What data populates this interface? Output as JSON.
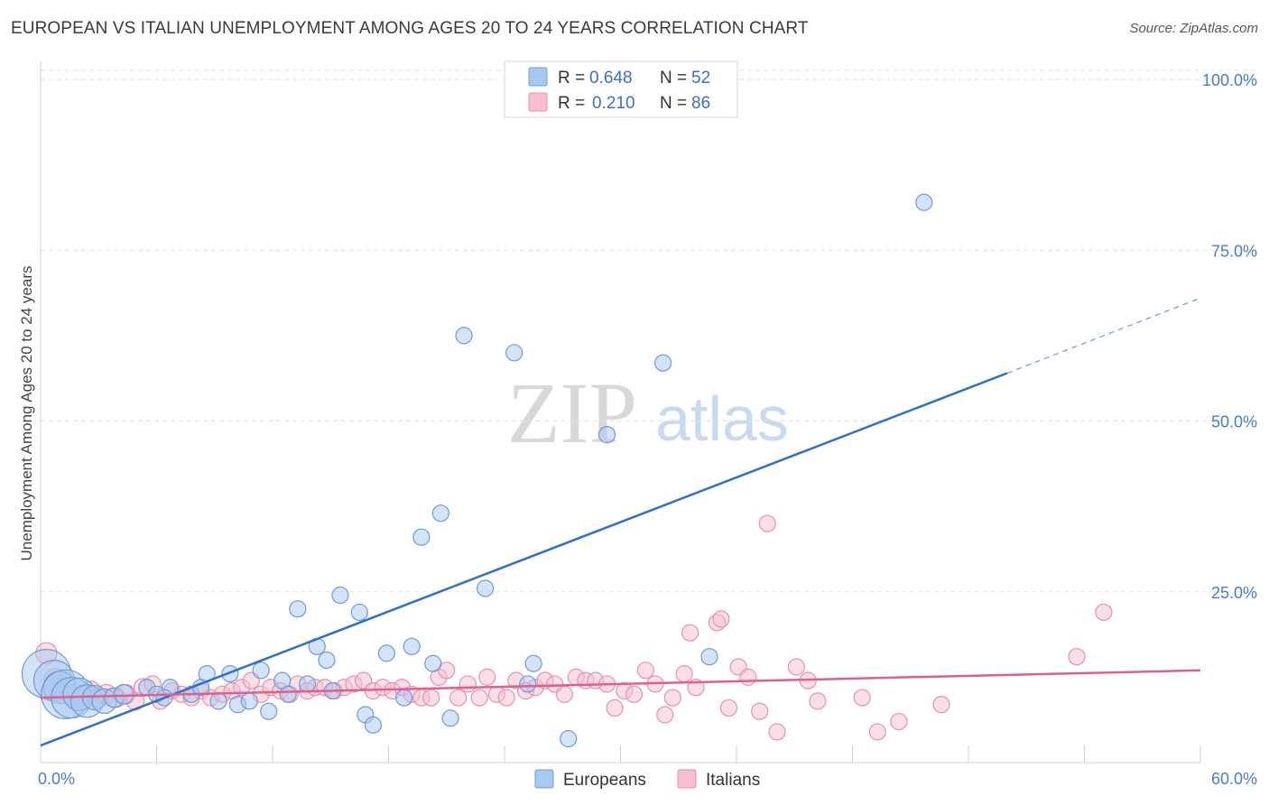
{
  "header": {
    "title": "EUROPEAN VS ITALIAN UNEMPLOYMENT AMONG AGES 20 TO 24 YEARS CORRELATION CHART",
    "source": "Source: ZipAtlas.com"
  },
  "watermark": {
    "zip": "ZIP",
    "atlas": "atlas"
  },
  "legend": {
    "r_label": "R =",
    "n_label": "N =",
    "europeans": {
      "r": "0.648",
      "n": "52"
    },
    "italians": {
      "r": "0.210",
      "n": "86"
    }
  },
  "chart_data": {
    "type": "scatter",
    "title": "EUROPEAN VS ITALIAN UNEMPLOYMENT AMONG AGES 20 TO 24 YEARS CORRELATION CHART",
    "xlabel": "",
    "ylabel": "Unemployment Among Ages 20 to 24 years",
    "xlim": [
      0,
      60
    ],
    "ylim": [
      0,
      100
    ],
    "x_tick_labels": {
      "min": "0.0%",
      "max": "60.0%"
    },
    "y_ticks": [
      {
        "value": 100,
        "label": "100.0%"
      },
      {
        "value": 75,
        "label": "75.0%"
      },
      {
        "value": 50,
        "label": "50.0%"
      },
      {
        "value": 25,
        "label": "25.0%"
      }
    ],
    "colors": {
      "europeans_fill": "#a9c8f0",
      "europeans_stroke": "#6e9bd8",
      "europeans_line": "#2e6fcc",
      "italians_fill": "#f6bfd0",
      "italians_stroke": "#e98fae",
      "italians_line": "#e0608a"
    },
    "series": [
      {
        "name": "Europeans",
        "r": 0.648,
        "n": 52,
        "trend": {
          "x0": 0,
          "y0": 2.5,
          "x1": 50,
          "y1": 57,
          "dash_to_x": 60,
          "dash_to_y": 68
        },
        "points": [
          [
            0.3,
            13,
            3
          ],
          [
            0.7,
            12,
            2.5
          ],
          [
            1.0,
            11,
            2
          ],
          [
            1.3,
            10,
            3
          ],
          [
            1.6,
            9.5,
            2.5
          ],
          [
            2.0,
            10,
            2
          ],
          [
            2.4,
            9,
            2
          ],
          [
            2.8,
            9.5,
            1.5
          ],
          [
            3.3,
            9,
            1.5
          ],
          [
            3.8,
            9.5,
            1.2
          ],
          [
            4.3,
            10,
            1.2
          ],
          [
            5.5,
            11,
            1
          ],
          [
            6.0,
            10,
            1
          ],
          [
            6.7,
            11,
            1
          ],
          [
            7.8,
            10,
            1
          ],
          [
            8.3,
            11,
            1
          ],
          [
            8.6,
            13,
            1
          ],
          [
            9.2,
            9,
            1
          ],
          [
            9.8,
            13,
            1
          ],
          [
            10.2,
            8.5,
            1
          ],
          [
            10.8,
            9,
            1
          ],
          [
            11.4,
            13.5,
            1
          ],
          [
            11.8,
            7.5,
            1
          ],
          [
            12.5,
            12,
            1
          ],
          [
            12.8,
            10,
            1
          ],
          [
            13.3,
            22.5,
            1
          ],
          [
            13.8,
            11.5,
            1
          ],
          [
            14.3,
            17,
            1
          ],
          [
            14.8,
            15,
            1
          ],
          [
            15.1,
            10.5,
            1
          ],
          [
            15.5,
            24.5,
            1
          ],
          [
            16.5,
            22,
            1
          ],
          [
            16.8,
            7,
            1
          ],
          [
            17.2,
            5.5,
            1
          ],
          [
            17.9,
            16,
            1
          ],
          [
            18.8,
            9.5,
            1
          ],
          [
            19.2,
            17,
            1
          ],
          [
            19.7,
            33,
            1
          ],
          [
            20.3,
            14.5,
            1
          ],
          [
            20.7,
            36.5,
            1
          ],
          [
            21.2,
            6.5,
            1
          ],
          [
            21.9,
            62.5,
            1
          ],
          [
            23.0,
            25.5,
            1
          ],
          [
            24.5,
            60,
            1
          ],
          [
            25.2,
            11.5,
            1
          ],
          [
            25.5,
            14.5,
            1
          ],
          [
            27.3,
            3.5,
            1
          ],
          [
            29.3,
            48,
            1
          ],
          [
            32.2,
            58.5,
            1
          ],
          [
            34.6,
            15.5,
            1
          ],
          [
            45.7,
            82,
            1
          ],
          [
            6.4,
            9.5,
            1
          ]
        ]
      },
      {
        "name": "Italians",
        "r": 0.21,
        "n": 86,
        "trend": {
          "x0": 0,
          "y0": 9.5,
          "x1": 60,
          "y1": 13.5
        },
        "points": [
          [
            0.3,
            16,
            1.3
          ],
          [
            0.8,
            12,
            1.5
          ],
          [
            1.2,
            10.5,
            1.5
          ],
          [
            1.7,
            10,
            1.3
          ],
          [
            2.2,
            9.5,
            1.3
          ],
          [
            2.6,
            10.5,
            1.2
          ],
          [
            3.0,
            9.5,
            1.2
          ],
          [
            3.4,
            10,
            1.2
          ],
          [
            3.9,
            9.5,
            1.2
          ],
          [
            4.4,
            10,
            1.2
          ],
          [
            4.9,
            9,
            1.1
          ],
          [
            5.3,
            11,
            1.1
          ],
          [
            5.8,
            11.5,
            1
          ],
          [
            6.2,
            9,
            1
          ],
          [
            6.8,
            10.5,
            1
          ],
          [
            7.3,
            10,
            1
          ],
          [
            7.8,
            9.5,
            1
          ],
          [
            8.3,
            10.5,
            1
          ],
          [
            8.8,
            9.5,
            1
          ],
          [
            9.4,
            10,
            1
          ],
          [
            9.9,
            10.5,
            1
          ],
          [
            10.4,
            11,
            1
          ],
          [
            10.9,
            12,
            1
          ],
          [
            11.4,
            10,
            1
          ],
          [
            11.9,
            11,
            1
          ],
          [
            12.4,
            10.5,
            1
          ],
          [
            12.9,
            10,
            1
          ],
          [
            13.3,
            11.5,
            1
          ],
          [
            13.8,
            10.5,
            1
          ],
          [
            14.2,
            11,
            1
          ],
          [
            14.7,
            11,
            1
          ],
          [
            15.2,
            10.5,
            1
          ],
          [
            15.7,
            11,
            1
          ],
          [
            16.2,
            11.5,
            1
          ],
          [
            16.7,
            12,
            1
          ],
          [
            17.2,
            10.5,
            1
          ],
          [
            17.7,
            11,
            1
          ],
          [
            18.2,
            10.5,
            1
          ],
          [
            18.7,
            11,
            1
          ],
          [
            19.2,
            10,
            1
          ],
          [
            19.7,
            9.5,
            1
          ],
          [
            20.2,
            9.5,
            1
          ],
          [
            20.6,
            12.5,
            1
          ],
          [
            21.0,
            13.5,
            1
          ],
          [
            21.6,
            9.5,
            1
          ],
          [
            22.1,
            11.5,
            1
          ],
          [
            22.7,
            9.5,
            1
          ],
          [
            23.1,
            12.5,
            1
          ],
          [
            23.6,
            10,
            1
          ],
          [
            24.1,
            9.5,
            1
          ],
          [
            24.6,
            12,
            1
          ],
          [
            25.1,
            10.5,
            1
          ],
          [
            25.6,
            11,
            1
          ],
          [
            26.1,
            12,
            1
          ],
          [
            26.6,
            11.5,
            1
          ],
          [
            27.1,
            10,
            1
          ],
          [
            27.7,
            12.5,
            1
          ],
          [
            28.2,
            12,
            1
          ],
          [
            28.7,
            12,
            1
          ],
          [
            29.3,
            11.5,
            1
          ],
          [
            29.7,
            8,
            1
          ],
          [
            30.2,
            10.5,
            1
          ],
          [
            30.7,
            10,
            1
          ],
          [
            31.3,
            13.5,
            1
          ],
          [
            31.8,
            11.5,
            1
          ],
          [
            32.3,
            7,
            1
          ],
          [
            32.7,
            9.5,
            1
          ],
          [
            33.3,
            13,
            1
          ],
          [
            33.6,
            19,
            1
          ],
          [
            33.9,
            11,
            1
          ],
          [
            35.0,
            20.5,
            1
          ],
          [
            35.2,
            21,
            1
          ],
          [
            35.6,
            8,
            1
          ],
          [
            36.1,
            14,
            1
          ],
          [
            36.6,
            12.5,
            1
          ],
          [
            37.2,
            7.5,
            1
          ],
          [
            37.6,
            35,
            1
          ],
          [
            38.1,
            4.5,
            1
          ],
          [
            39.1,
            14,
            1
          ],
          [
            39.7,
            12,
            1
          ],
          [
            40.2,
            9,
            1
          ],
          [
            42.5,
            9.5,
            1
          ],
          [
            43.3,
            4.5,
            1
          ],
          [
            44.4,
            6,
            1
          ],
          [
            46.6,
            8.5,
            1
          ],
          [
            53.6,
            15.5,
            1
          ],
          [
            55.0,
            22,
            1
          ]
        ]
      }
    ]
  },
  "bottom_legend": {
    "europeans": "Europeans",
    "italians": "Italians"
  }
}
